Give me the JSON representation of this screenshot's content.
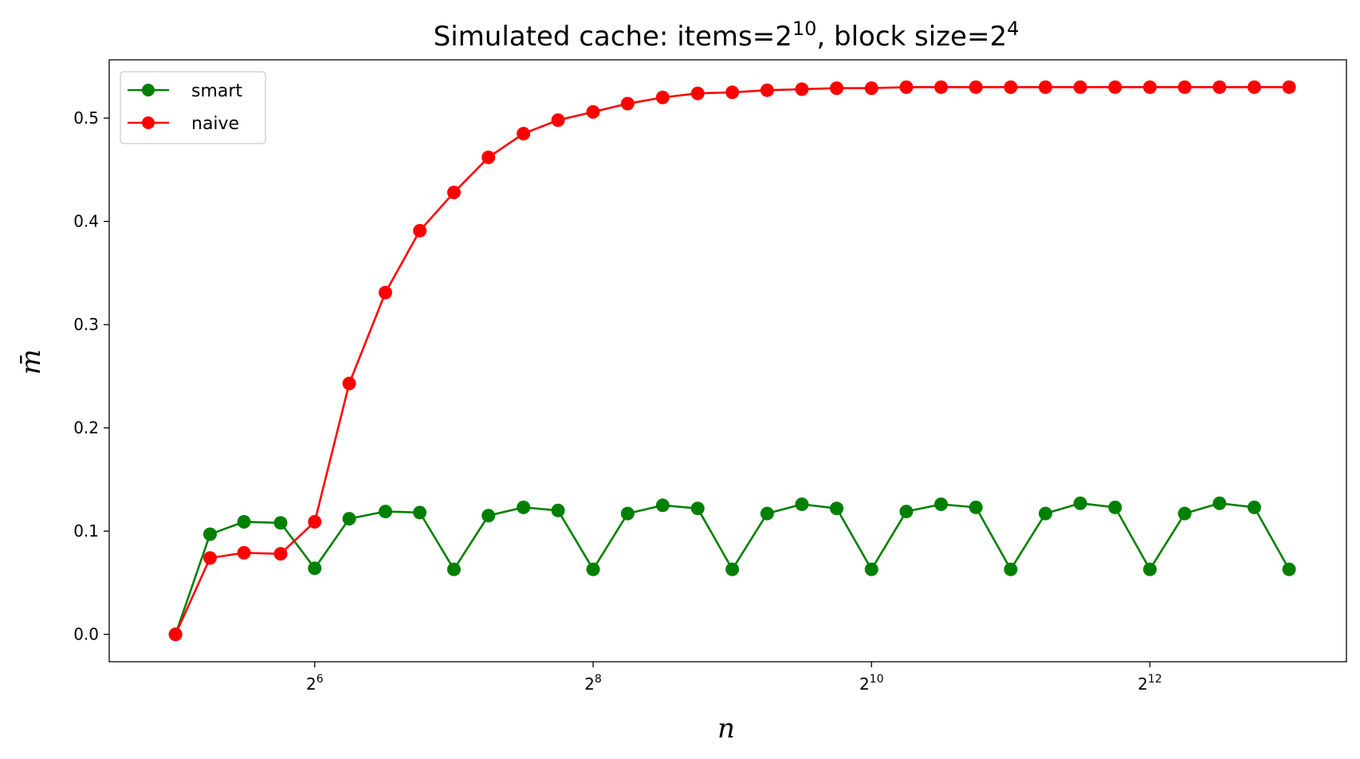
{
  "chart_data": {
    "type": "line",
    "title": {
      "prefix": "Simulated cache: items=2",
      "items_exp": "10",
      "middle": ", block size=2",
      "block_exp": "4"
    },
    "xlabel": "n",
    "ylabel": "m̄",
    "x_scale": "log2",
    "xlim": [
      23,
      10900
    ],
    "ylim": [
      -0.0265,
      0.5565
    ],
    "grid": false,
    "legend": "top-left",
    "x_ticks": [
      {
        "value": 64,
        "base": "2",
        "exp": "6"
      },
      {
        "value": 256,
        "base": "2",
        "exp": "8"
      },
      {
        "value": 1024,
        "base": "2",
        "exp": "10"
      },
      {
        "value": 4096,
        "base": "2",
        "exp": "12"
      }
    ],
    "y_ticks": [
      {
        "value": 0.0,
        "label": "0.0"
      },
      {
        "value": 0.1,
        "label": "0.1"
      },
      {
        "value": 0.2,
        "label": "0.2"
      },
      {
        "value": 0.3,
        "label": "0.3"
      },
      {
        "value": 0.4,
        "label": "0.4"
      },
      {
        "value": 0.5,
        "label": "0.5"
      }
    ],
    "x": [
      32,
      38,
      45,
      54,
      64,
      76,
      91,
      108,
      128,
      152,
      181,
      215,
      256,
      304,
      362,
      431,
      512,
      609,
      724,
      861,
      1024,
      1218,
      1448,
      1722,
      2048,
      2435,
      2896,
      3444,
      4096,
      4871,
      5793,
      6889,
      8192
    ],
    "series": [
      {
        "name": "smart",
        "color": "#008000",
        "values": [
          0.0,
          0.097,
          0.109,
          0.108,
          0.064,
          0.112,
          0.119,
          0.118,
          0.063,
          0.115,
          0.123,
          0.12,
          0.063,
          0.117,
          0.125,
          0.122,
          0.063,
          0.117,
          0.126,
          0.122,
          0.063,
          0.119,
          0.126,
          0.123,
          0.063,
          0.117,
          0.127,
          0.123,
          0.063,
          0.117,
          0.127,
          0.123,
          0.063
        ]
      },
      {
        "name": "naive",
        "color": "#ff0000",
        "values": [
          0.0,
          0.074,
          0.079,
          0.078,
          0.109,
          0.243,
          0.331,
          0.391,
          0.428,
          0.462,
          0.485,
          0.498,
          0.506,
          0.514,
          0.52,
          0.524,
          0.525,
          0.527,
          0.528,
          0.529,
          0.529,
          0.53,
          0.53,
          0.53,
          0.53,
          0.53,
          0.53,
          0.53,
          0.53,
          0.53,
          0.53,
          0.53,
          0.53
        ]
      }
    ]
  }
}
